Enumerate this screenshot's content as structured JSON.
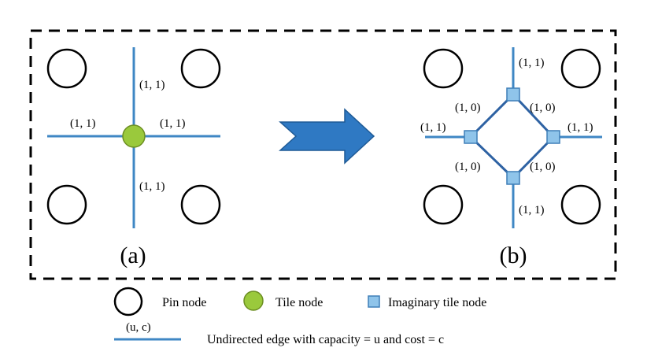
{
  "colors": {
    "edge": "#3f87c4",
    "diamond_edge": "#2e62a3",
    "tile_node_fill": "#9ac93c",
    "tile_node_stroke": "#6c8e22",
    "imaginary_node_fill": "#8fc4ea",
    "imaginary_node_stroke": "#3f7fb8",
    "pin_stroke": "#000000",
    "arrow_fill": "#2f79c3",
    "arrow_stroke": "#1e5a96",
    "frame": "#000000"
  },
  "panel_a": {
    "label": "(a)",
    "edge_labels": {
      "top": "(1, 1)",
      "left": "(1, 1)",
      "right": "(1, 1)",
      "bottom": "(1, 1)"
    }
  },
  "panel_b": {
    "label": "(b)",
    "edge_labels": {
      "top": "(1, 1)",
      "left": "(1, 1)",
      "right": "(1, 1)",
      "bottom": "(1, 1)",
      "diamond_upper_left": "(1, 0)",
      "diamond_upper_right": "(1, 0)",
      "diamond_lower_left": "(1, 0)",
      "diamond_lower_right": "(1, 0)"
    }
  },
  "legend": {
    "pin_node": "Pin node",
    "tile_node": "Tile node",
    "imaginary_tile_node": "Imaginary tile node",
    "edge_label": "(u, c)",
    "edge_description": "Undirected edge with capacity = u and cost = c"
  }
}
